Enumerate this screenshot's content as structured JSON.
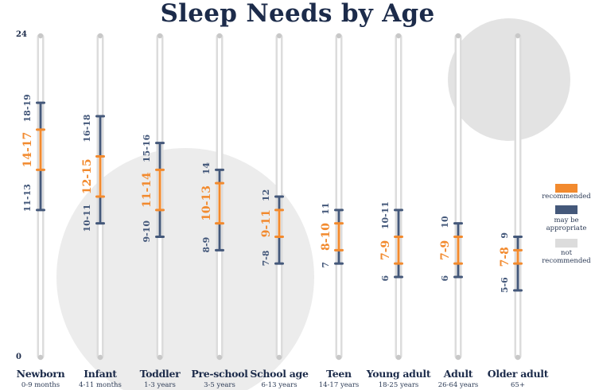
{
  "title": "Sleep Needs by Age",
  "colors": {
    "recommended": "#f28a2e",
    "may_be_appropriate": "#44587a",
    "not_recommended": "#dcdcdc",
    "title": "#1c2b4a"
  },
  "legend": [
    {
      "key": "recommended",
      "label": "recommended"
    },
    {
      "key": "may_be_appropriate",
      "label": "may be appropriate"
    },
    {
      "key": "not_recommended",
      "label": "not recommended"
    }
  ],
  "chart_data": {
    "type": "range-bar",
    "title": "Sleep Needs by Age",
    "ylim": [
      0,
      24
    ],
    "y_ticks": [
      "0",
      "24"
    ],
    "categories": [
      {
        "name": "Newborn",
        "sub": "0-9 months",
        "low_range": [
          11,
          13
        ],
        "recommended": [
          14,
          17
        ],
        "high_range": [
          18,
          19
        ],
        "low_label": "11-13",
        "rec_label": "14-17",
        "high_label": "18-19"
      },
      {
        "name": "Infant",
        "sub": "4-11 months",
        "low_range": [
          10,
          11
        ],
        "recommended": [
          12,
          15
        ],
        "high_range": [
          16,
          18
        ],
        "low_label": "10-11",
        "rec_label": "12-15",
        "high_label": "16-18"
      },
      {
        "name": "Toddler",
        "sub": "1-3 years",
        "low_range": [
          9,
          10
        ],
        "recommended": [
          11,
          14
        ],
        "high_range": [
          15,
          16
        ],
        "low_label": "9-10",
        "rec_label": "11-14",
        "high_label": "15-16"
      },
      {
        "name": "Pre-school",
        "sub": "3-5 years",
        "low_range": [
          8,
          9
        ],
        "recommended": [
          10,
          13
        ],
        "high_range": [
          14,
          14
        ],
        "low_label": "8-9",
        "rec_label": "10-13",
        "high_label": "14"
      },
      {
        "name": "School age",
        "sub": "6-13 years",
        "low_range": [
          7,
          8
        ],
        "recommended": [
          9,
          11
        ],
        "high_range": [
          12,
          12
        ],
        "low_label": "7-8",
        "rec_label": "9-11",
        "high_label": "12"
      },
      {
        "name": "Teen",
        "sub": "14-17 years",
        "low_range": [
          7,
          7
        ],
        "recommended": [
          8,
          10
        ],
        "high_range": [
          11,
          11
        ],
        "low_label": "7",
        "rec_label": "8-10",
        "high_label": "11"
      },
      {
        "name": "Young adult",
        "sub": "18-25 years",
        "low_range": [
          6,
          6
        ],
        "recommended": [
          7,
          9
        ],
        "high_range": [
          10,
          11
        ],
        "low_label": "6",
        "rec_label": "7-9",
        "high_label": "10-11"
      },
      {
        "name": "Adult",
        "sub": "26-64 years",
        "low_range": [
          6,
          6
        ],
        "recommended": [
          7,
          9
        ],
        "high_range": [
          10,
          10
        ],
        "low_label": "6",
        "rec_label": "7-9",
        "high_label": "10"
      },
      {
        "name": "Older adult",
        "sub": "65+",
        "low_range": [
          5,
          6
        ],
        "recommended": [
          7,
          8
        ],
        "high_range": [
          9,
          9
        ],
        "low_label": "5-6",
        "rec_label": "7-8",
        "high_label": "9"
      }
    ]
  }
}
